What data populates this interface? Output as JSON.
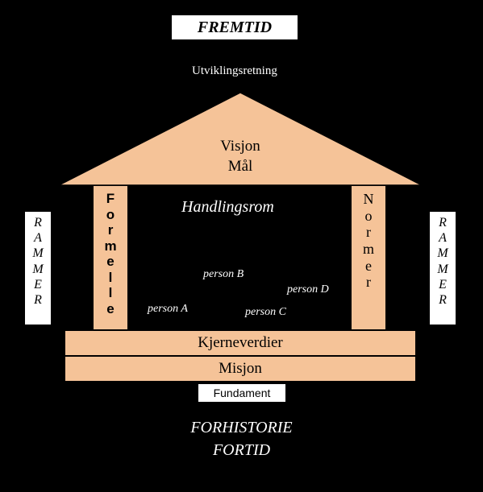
{
  "colors": {
    "background": "#000000",
    "shape_fill": "#f5c398",
    "box_fill": "#ffffff",
    "text_on_dark": "#ffffff",
    "text_on_light": "#000000"
  },
  "top_label": "FREMTID",
  "dev_direction": "Utviklingsretning",
  "roof": {
    "line1": "Visjon",
    "line2": "Mål"
  },
  "pillar_left": [
    "F",
    "o",
    "r",
    "m",
    "e",
    "l",
    "l",
    "e"
  ],
  "pillar_right": [
    "N",
    "o",
    "r",
    "m",
    "e",
    "r"
  ],
  "interior_title": "Handlingsrom",
  "persons": {
    "a": "person A",
    "b": "person B",
    "c": "person C",
    "d": "person D"
  },
  "base1": "Kjerneverdier",
  "base2": "Misjon",
  "fundament": "Fundament",
  "bottom": {
    "line1": "FORHISTORIE",
    "line2": "FORTID"
  },
  "rammer": [
    "R",
    "A",
    "M",
    "M",
    "E",
    "R"
  ]
}
